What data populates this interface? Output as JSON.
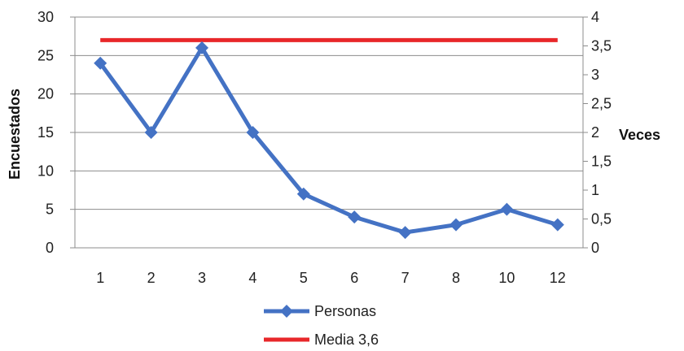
{
  "chart_data": {
    "type": "line",
    "categories": [
      "1",
      "2",
      "3",
      "4",
      "5",
      "6",
      "7",
      "8",
      "10",
      "12"
    ],
    "series": [
      {
        "name": "Personas",
        "values": [
          24,
          15,
          26,
          15,
          7,
          4,
          2,
          3,
          5,
          3
        ],
        "color": "#4472C4",
        "axis": "left",
        "marker": "diamond"
      },
      {
        "name": "Media 3,6",
        "values": [
          3.6,
          3.6,
          3.6,
          3.6,
          3.6,
          3.6,
          3.6,
          3.6,
          3.6,
          3.6
        ],
        "color": "#E8272A",
        "axis": "right",
        "marker": "none"
      }
    ],
    "ylabel": "Encuestados",
    "y2label": "Veces",
    "ylim": [
      0,
      30
    ],
    "y2lim": [
      0,
      4
    ],
    "yticks": [
      "0",
      "5",
      "10",
      "15",
      "20",
      "25",
      "30"
    ],
    "y2ticks": [
      "0",
      "0,5",
      "1",
      "1,5",
      "2",
      "2,5",
      "3",
      "3,5",
      "4"
    ],
    "grid": true,
    "legend": "bottom"
  }
}
